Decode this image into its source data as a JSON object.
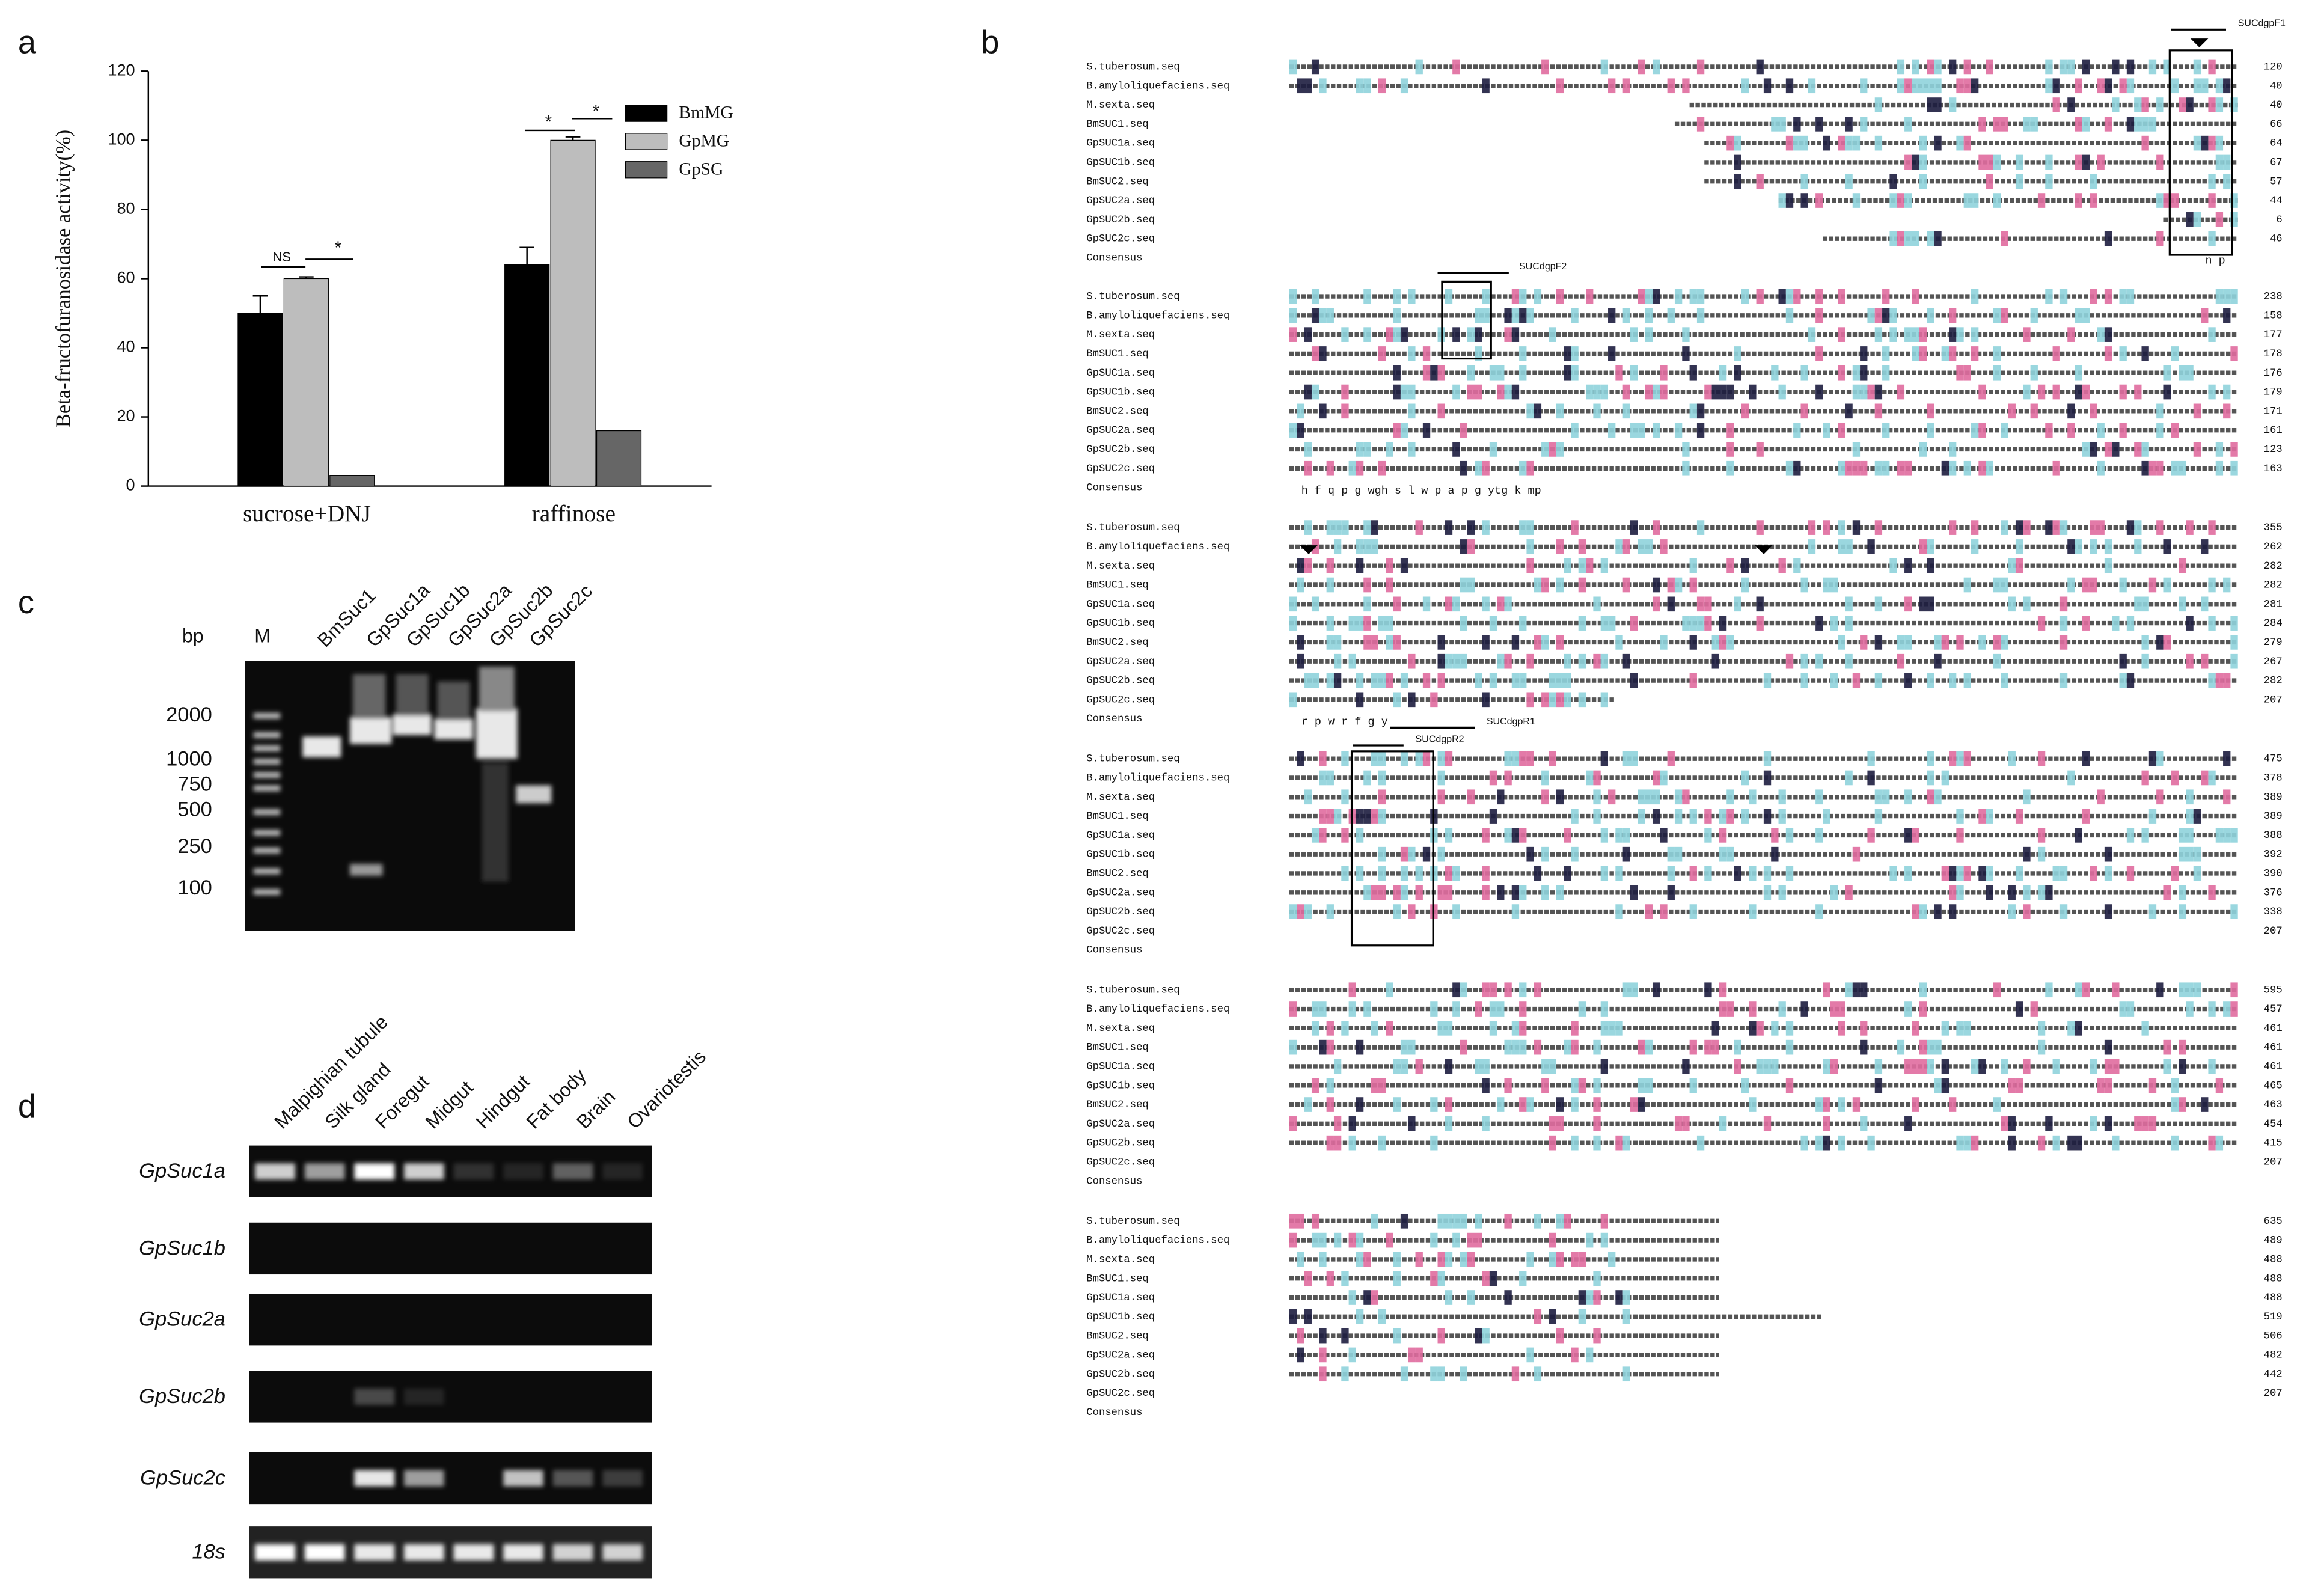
{
  "panel_labels": [
    "a",
    "b",
    "c",
    "d"
  ],
  "chart_data": {
    "type": "bar",
    "ylabel": "Beta-fructofuranosidase activity(%)",
    "categories": [
      "sucrose+DNJ",
      "raffinose"
    ],
    "series": [
      {
        "name": "BmMG",
        "color": "#000000",
        "values": [
          50,
          64
        ],
        "errors": [
          5,
          5
        ]
      },
      {
        "name": "GpMG",
        "color": "#bdbdbd",
        "values": [
          60,
          100
        ],
        "errors": [
          0.5,
          1
        ]
      },
      {
        "name": "GpSG",
        "color": "#666666",
        "values": [
          3,
          16
        ],
        "errors": [
          0,
          0
        ]
      }
    ],
    "ylim": [
      0,
      120
    ],
    "yticks": [
      0,
      20,
      40,
      60,
      80,
      100,
      120
    ],
    "annotations": [
      "NS",
      "*",
      "*",
      "*"
    ]
  },
  "alignment": {
    "sequences": [
      "S.tuberosum.seq",
      "B.amyloliquefaciens.seq",
      "M.sexta.seq",
      "BmSUC1.seq",
      "GpSUC1a.seq",
      "GpSUC1b.seq",
      "BmSUC2.seq",
      "GpSUC2a.seq",
      "GpSUC2b.seq",
      "GpSUC2c.seq",
      "Consensus"
    ],
    "blocks": [
      {
        "numbers": [
          120,
          40,
          40,
          66,
          64,
          67,
          57,
          44,
          6,
          46
        ],
        "consensus": "n p"
      },
      {
        "numbers": [
          238,
          158,
          177,
          178,
          176,
          179,
          171,
          161,
          123,
          163
        ],
        "consensus": "h f q p      g  wgh  s  l  w  p a p          g         ytg                         k  mp"
      },
      {
        "numbers": [
          355,
          262,
          282,
          282,
          281,
          284,
          279,
          267,
          282,
          207
        ],
        "consensus": "r p   w            r  f  g   y"
      },
      {
        "numbers": [
          475,
          378,
          389,
          389,
          388,
          392,
          390,
          376,
          338,
          207
        ],
        "consensus": ""
      },
      {
        "numbers": [
          595,
          457,
          461,
          461,
          461,
          465,
          463,
          454,
          415,
          207
        ],
        "consensus": ""
      },
      {
        "numbers": [
          635,
          489,
          488,
          488,
          488,
          519,
          506,
          482,
          442,
          207
        ],
        "consensus": ""
      }
    ],
    "primers": [
      "SUCdgpF1",
      "SUCdgpF2",
      "SUCdgpR1",
      "SUCdgpR2"
    ]
  },
  "gel_c": {
    "unit": "bp",
    "marker": "M",
    "lanes": [
      "BmSuc1",
      "GpSuc1a",
      "GpSuc1b",
      "GpSuc2a",
      "GpSuc2b",
      "GpSuc2c"
    ],
    "sizes": [
      2000,
      1000,
      750,
      500,
      250,
      100
    ]
  },
  "gel_d": {
    "tissues": [
      "Malpighian tubule",
      "Silk gland",
      "Foregut",
      "Midgut",
      "Hindgut",
      "Fat body",
      "Brain",
      "Ovariotestis"
    ],
    "genes": [
      "GpSuc1a",
      "GpSuc1b",
      "GpSuc2a",
      "GpSuc2b",
      "GpSuc2c",
      "18s"
    ]
  }
}
